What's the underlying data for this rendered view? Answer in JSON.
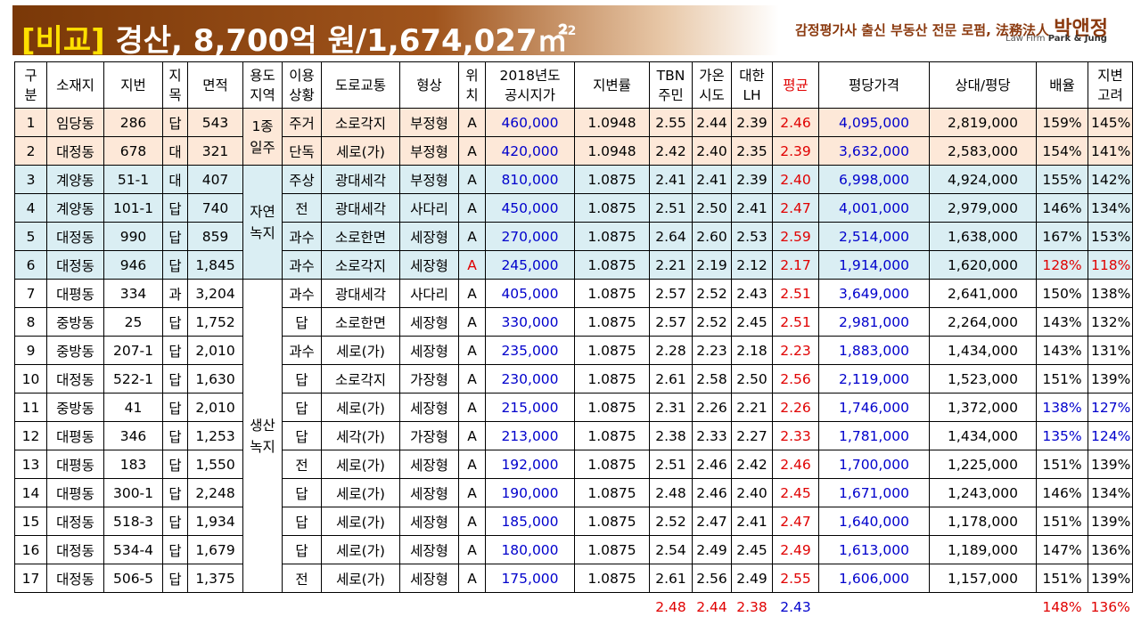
{
  "title": {
    "bracket": "[비교]",
    "rest": " 경산, 8,700억 원/1,674,027㎡",
    "sup": "2"
  },
  "brand": {
    "main": "감정평가사 출신 부동산 전문 로펌, 法務法人 ",
    "name": "박앤정",
    "sub_prefix": "Law Firm ",
    "sub_bold": "Park & Jung"
  },
  "headers": {
    "no": "구\n분",
    "location": "소재지",
    "lot": "지번",
    "category": "지\n목",
    "area": "면적",
    "zoning": "용도\n지역",
    "use": "이용\n상황",
    "road": "도로교통",
    "shape": "형상",
    "position": "위\n치",
    "price2018": "2018년도\n공시지가",
    "change": "지변률",
    "tbn": "TBN\n주민",
    "gaon": "가온\n시도",
    "lh": "대한\nLH",
    "avg": "평균",
    "pyeong_price": "평당가격",
    "relative": "상대/평당",
    "ratio": "배율",
    "change_consider": "지변\n고려"
  },
  "zoning_groups": {
    "g1": "1종\n일주",
    "g2": "자연\n녹지",
    "g3": "생산\n녹지"
  },
  "rows": [
    {
      "no": "1",
      "location": "임당동",
      "lot": "286",
      "category": "답",
      "area": "543",
      "use": "주거",
      "road": "소로각지",
      "shape": "부정형",
      "position": "A",
      "price2018": "460,000",
      "change": "1.0948",
      "tbn": "2.55",
      "gaon": "2.44",
      "lh": "2.39",
      "avg": "2.46",
      "pyeong_price": "4,095,000",
      "relative": "2,819,000",
      "ratio": "159%",
      "change_consider": "145%"
    },
    {
      "no": "2",
      "location": "대정동",
      "lot": "678",
      "category": "대",
      "area": "321",
      "use": "단독",
      "road": "세로(가)",
      "shape": "부정형",
      "position": "A",
      "price2018": "420,000",
      "change": "1.0948",
      "tbn": "2.42",
      "gaon": "2.40",
      "lh": "2.35",
      "avg": "2.39",
      "pyeong_price": "3,632,000",
      "relative": "2,583,000",
      "ratio": "154%",
      "change_consider": "141%"
    },
    {
      "no": "3",
      "location": "계양동",
      "lot": "51-1",
      "category": "대",
      "area": "407",
      "use": "주상",
      "road": "광대세각",
      "shape": "부정형",
      "position": "A",
      "price2018": "810,000",
      "change": "1.0875",
      "tbn": "2.41",
      "gaon": "2.41",
      "lh": "2.39",
      "avg": "2.40",
      "pyeong_price": "6,998,000",
      "relative": "4,924,000",
      "ratio": "155%",
      "change_consider": "142%"
    },
    {
      "no": "4",
      "location": "계양동",
      "lot": "101-1",
      "category": "답",
      "area": "740",
      "use": "전",
      "road": "광대세각",
      "shape": "사다리",
      "position": "A",
      "price2018": "450,000",
      "change": "1.0875",
      "tbn": "2.51",
      "gaon": "2.50",
      "lh": "2.41",
      "avg": "2.47",
      "pyeong_price": "4,001,000",
      "relative": "2,979,000",
      "ratio": "146%",
      "change_consider": "134%"
    },
    {
      "no": "5",
      "location": "대정동",
      "lot": "990",
      "category": "답",
      "area": "859",
      "use": "과수",
      "road": "소로한면",
      "shape": "세장형",
      "position": "A",
      "price2018": "270,000",
      "change": "1.0875",
      "tbn": "2.64",
      "gaon": "2.60",
      "lh": "2.53",
      "avg": "2.59",
      "pyeong_price": "2,514,000",
      "relative": "1,638,000",
      "ratio": "167%",
      "change_consider": "153%"
    },
    {
      "no": "6",
      "location": "대정동",
      "lot": "946",
      "category": "답",
      "area": "1,845",
      "use": "과수",
      "road": "소로각지",
      "shape": "세장형",
      "position": "A",
      "price2018": "245,000",
      "change": "1.0875",
      "tbn": "2.21",
      "gaon": "2.19",
      "lh": "2.12",
      "avg": "2.17",
      "pyeong_price": "1,914,000",
      "relative": "1,620,000",
      "ratio": "128%",
      "change_consider": "118%"
    },
    {
      "no": "7",
      "location": "대평동",
      "lot": "334",
      "category": "과",
      "area": "3,204",
      "use": "과수",
      "road": "광대세각",
      "shape": "사다리",
      "position": "A",
      "price2018": "405,000",
      "change": "1.0875",
      "tbn": "2.57",
      "gaon": "2.52",
      "lh": "2.43",
      "avg": "2.51",
      "pyeong_price": "3,649,000",
      "relative": "2,641,000",
      "ratio": "150%",
      "change_consider": "138%"
    },
    {
      "no": "8",
      "location": "중방동",
      "lot": "25",
      "category": "답",
      "area": "1,752",
      "use": "답",
      "road": "소로한면",
      "shape": "세장형",
      "position": "A",
      "price2018": "330,000",
      "change": "1.0875",
      "tbn": "2.57",
      "gaon": "2.52",
      "lh": "2.45",
      "avg": "2.51",
      "pyeong_price": "2,981,000",
      "relative": "2,264,000",
      "ratio": "143%",
      "change_consider": "132%"
    },
    {
      "no": "9",
      "location": "중방동",
      "lot": "207-1",
      "category": "답",
      "area": "2,010",
      "use": "과수",
      "road": "세로(가)",
      "shape": "세장형",
      "position": "A",
      "price2018": "235,000",
      "change": "1.0875",
      "tbn": "2.28",
      "gaon": "2.23",
      "lh": "2.18",
      "avg": "2.23",
      "pyeong_price": "1,883,000",
      "relative": "1,434,000",
      "ratio": "143%",
      "change_consider": "131%"
    },
    {
      "no": "10",
      "location": "대정동",
      "lot": "522-1",
      "category": "답",
      "area": "1,630",
      "use": "답",
      "road": "소로각지",
      "shape": "가장형",
      "position": "A",
      "price2018": "230,000",
      "change": "1.0875",
      "tbn": "2.61",
      "gaon": "2.58",
      "lh": "2.50",
      "avg": "2.56",
      "pyeong_price": "2,119,000",
      "relative": "1,523,000",
      "ratio": "151%",
      "change_consider": "139%"
    },
    {
      "no": "11",
      "location": "중방동",
      "lot": "41",
      "category": "답",
      "area": "2,010",
      "use": "답",
      "road": "세로(가)",
      "shape": "세장형",
      "position": "A",
      "price2018": "215,000",
      "change": "1.0875",
      "tbn": "2.31",
      "gaon": "2.26",
      "lh": "2.21",
      "avg": "2.26",
      "pyeong_price": "1,746,000",
      "relative": "1,372,000",
      "ratio": "138%",
      "change_consider": "127%"
    },
    {
      "no": "12",
      "location": "대평동",
      "lot": "346",
      "category": "답",
      "area": "1,253",
      "use": "답",
      "road": "세각(가)",
      "shape": "가장형",
      "position": "A",
      "price2018": "213,000",
      "change": "1.0875",
      "tbn": "2.38",
      "gaon": "2.33",
      "lh": "2.27",
      "avg": "2.33",
      "pyeong_price": "1,781,000",
      "relative": "1,434,000",
      "ratio": "135%",
      "change_consider": "124%"
    },
    {
      "no": "13",
      "location": "대평동",
      "lot": "183",
      "category": "답",
      "area": "1,550",
      "use": "전",
      "road": "세로(가)",
      "shape": "세장형",
      "position": "A",
      "price2018": "192,000",
      "change": "1.0875",
      "tbn": "2.51",
      "gaon": "2.46",
      "lh": "2.42",
      "avg": "2.46",
      "pyeong_price": "1,700,000",
      "relative": "1,225,000",
      "ratio": "151%",
      "change_consider": "139%"
    },
    {
      "no": "14",
      "location": "대평동",
      "lot": "300-1",
      "category": "답",
      "area": "2,248",
      "use": "답",
      "road": "세로(가)",
      "shape": "세장형",
      "position": "A",
      "price2018": "190,000",
      "change": "1.0875",
      "tbn": "2.48",
      "gaon": "2.46",
      "lh": "2.40",
      "avg": "2.45",
      "pyeong_price": "1,671,000",
      "relative": "1,243,000",
      "ratio": "146%",
      "change_consider": "134%"
    },
    {
      "no": "15",
      "location": "대정동",
      "lot": "518-3",
      "category": "답",
      "area": "1,934",
      "use": "답",
      "road": "세로(가)",
      "shape": "세장형",
      "position": "A",
      "price2018": "185,000",
      "change": "1.0875",
      "tbn": "2.52",
      "gaon": "2.47",
      "lh": "2.41",
      "avg": "2.47",
      "pyeong_price": "1,640,000",
      "relative": "1,178,000",
      "ratio": "151%",
      "change_consider": "139%"
    },
    {
      "no": "16",
      "location": "대정동",
      "lot": "534-4",
      "category": "답",
      "area": "1,679",
      "use": "답",
      "road": "세로(가)",
      "shape": "세장형",
      "position": "A",
      "price2018": "180,000",
      "change": "1.0875",
      "tbn": "2.54",
      "gaon": "2.49",
      "lh": "2.45",
      "avg": "2.49",
      "pyeong_price": "1,613,000",
      "relative": "1,189,000",
      "ratio": "147%",
      "change_consider": "136%"
    },
    {
      "no": "17",
      "location": "대정동",
      "lot": "506-5",
      "category": "답",
      "area": "1,375",
      "use": "전",
      "road": "세로(가)",
      "shape": "세장형",
      "position": "A",
      "price2018": "175,000",
      "change": "1.0875",
      "tbn": "2.61",
      "gaon": "2.56",
      "lh": "2.49",
      "avg": "2.55",
      "pyeong_price": "1,606,000",
      "relative": "1,157,000",
      "ratio": "151%",
      "change_consider": "139%"
    }
  ],
  "summary": {
    "tbn": "2.48",
    "gaon": "2.44",
    "lh": "2.38",
    "avg": "2.43",
    "ratio": "148%",
    "change_consider": "136%"
  },
  "colors": {
    "title_bg": "#8b4513",
    "title_bracket": "#ffe000",
    "peach_row": "#fde8d8",
    "blue_row": "#daeef3",
    "accent_red": "#e00000",
    "accent_blue": "#0000cc",
    "brand": "#8b3a0f"
  }
}
